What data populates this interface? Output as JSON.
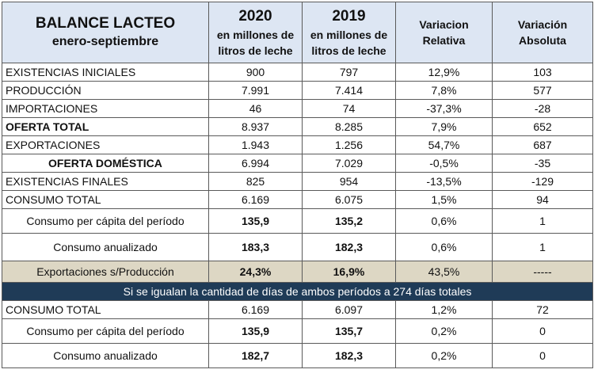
{
  "header": {
    "title": "BALANCE LACTEO",
    "subtitle": "enero-septiembre",
    "col2020_year": "2020",
    "col2020_sub1": "en millones de",
    "col2020_sub2": "litros de leche",
    "col2019_year": "2019",
    "col2019_sub1": "en millones de",
    "col2019_sub2": "litros de leche",
    "rel_l1": "Variacion",
    "rel_l2": "Relativa",
    "abs_l1": "Variación",
    "abs_l2": "Absoluta"
  },
  "rows": [
    {
      "label": "EXISTENCIAS  INICIALES",
      "v2020": "900",
      "v2019": "797",
      "rel": "12,9%",
      "abs": "103"
    },
    {
      "label": "PRODUCCIÓN",
      "v2020": "7.991",
      "v2019": "7.414",
      "rel": "7,8%",
      "abs": "577"
    },
    {
      "label": "IMPORTACIONES",
      "v2020": "46",
      "v2019": "74",
      "rel": "-37,3%",
      "abs": "-28"
    },
    {
      "label": "OFERTA TOTAL",
      "v2020": "8.937",
      "v2019": "8.285",
      "rel": "7,9%",
      "abs": "652"
    },
    {
      "label": "EXPORTACIONES",
      "v2020": "1.943",
      "v2019": "1.256",
      "rel": "54,7%",
      "abs": "687"
    },
    {
      "label": "OFERTA DOMÉSTICA",
      "v2020": "6.994",
      "v2019": "7.029",
      "rel": "-0,5%",
      "abs": "-35"
    },
    {
      "label": "EXISTENCIAS FINALES",
      "v2020": "825",
      "v2019": "954",
      "rel": "-13,5%",
      "abs": "-129"
    },
    {
      "label": "CONSUMO TOTAL",
      "v2020": "6.169",
      "v2019": "6.075",
      "rel": "1,5%",
      "abs": "94"
    },
    {
      "label": "Consumo per cápita del período",
      "v2020": "135,9",
      "v2019": "135,2",
      "rel": "0,6%",
      "abs": "1"
    },
    {
      "label": "Consumo anualizado",
      "v2020": "183,3",
      "v2019": "182,3",
      "rel": "0,6%",
      "abs": "1"
    },
    {
      "label": "Exportaciones s/Producción",
      "v2020": "24,3%",
      "v2019": "16,9%",
      "rel": "43,5%",
      "abs": "-----"
    }
  ],
  "banner": "Si se igualan la cantidad de días de ambos períodos a 274 días totales",
  "rows2": [
    {
      "label": "CONSUMO TOTAL",
      "v2020": "6.169",
      "v2019": "6.097",
      "rel": "1,2%",
      "abs": "72"
    },
    {
      "label": "Consumo per cápita del período",
      "v2020": "135,9",
      "v2019": "135,7",
      "rel": "0,2%",
      "abs": "0"
    },
    {
      "label": "Consumo anualizado",
      "v2020": "182,7",
      "v2019": "182,3",
      "rel": "0,2%",
      "abs": "0"
    }
  ]
}
